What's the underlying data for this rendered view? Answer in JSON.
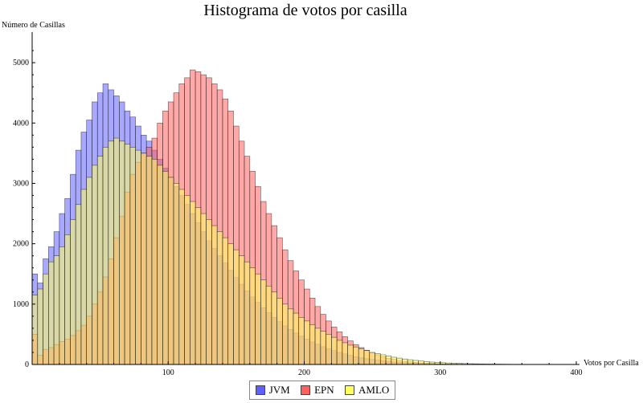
{
  "chart_data": {
    "type": "bar",
    "title": "Histograma de votos por casilla",
    "xlabel": "Votos por Casilla",
    "ylabel": "Número de Casillas",
    "xlim": [
      0,
      400
    ],
    "ylim": [
      0,
      5400
    ],
    "x_ticks": [
      100,
      200,
      300,
      400
    ],
    "y_ticks": [
      0,
      1000,
      2000,
      3000,
      4000,
      5000
    ],
    "bin_width": 4,
    "overlay": true,
    "legend_position": "bottom-center",
    "series": [
      {
        "name": "JVM",
        "color": "#6060ff",
        "values": [
          1500,
          1350,
          1750,
          1950,
          2200,
          2500,
          2750,
          3150,
          3550,
          3850,
          4050,
          4350,
          4500,
          4650,
          4550,
          4450,
          4350,
          4200,
          4100,
          3950,
          3800,
          3700,
          3550,
          3400,
          3250,
          3100,
          2950,
          2800,
          2650,
          2500,
          2350,
          2200,
          2050,
          1920,
          1800,
          1680,
          1560,
          1440,
          1330,
          1220,
          1120,
          1030,
          940,
          860,
          780,
          710,
          640,
          580,
          520,
          470,
          420,
          375,
          335,
          295,
          260,
          230,
          200,
          175,
          150,
          130,
          112,
          96,
          82,
          70,
          60,
          50,
          42,
          35,
          29,
          24,
          20,
          17,
          14,
          12,
          10,
          8,
          7,
          6,
          5,
          4,
          3,
          3,
          2,
          2,
          2,
          1,
          1,
          1,
          1,
          1,
          1,
          1,
          0,
          0,
          0,
          0,
          0,
          0,
          0,
          0
        ]
      },
      {
        "name": "EPN",
        "color": "#ff6060",
        "values": [
          500,
          150,
          250,
          280,
          330,
          380,
          420,
          480,
          560,
          650,
          800,
          1000,
          1200,
          1450,
          1750,
          2100,
          2450,
          2850,
          3150,
          3350,
          3500,
          3600,
          3750,
          4000,
          4200,
          4350,
          4500,
          4650,
          4750,
          4880,
          4850,
          4800,
          4750,
          4650,
          4550,
          4400,
          4200,
          3950,
          3700,
          3450,
          3200,
          2950,
          2700,
          2500,
          2300,
          2100,
          1900,
          1720,
          1550,
          1400,
          1250,
          1100,
          960,
          830,
          720,
          620,
          540,
          460,
          390,
          330,
          280,
          235,
          195,
          160,
          130,
          105,
          85,
          68,
          54,
          43,
          34,
          27,
          21,
          17,
          13,
          10,
          8,
          6,
          5,
          4,
          3,
          2,
          2,
          2,
          1,
          1,
          1,
          1,
          1,
          0,
          0,
          0,
          0,
          0,
          0,
          0,
          0,
          0,
          0,
          0
        ]
      },
      {
        "name": "AMLO",
        "color": "#ffff60",
        "values": [
          1150,
          1250,
          1500,
          1700,
          1800,
          1950,
          2150,
          2400,
          2650,
          2900,
          3100,
          3300,
          3450,
          3600,
          3700,
          3750,
          3700,
          3650,
          3600,
          3550,
          3500,
          3450,
          3400,
          3300,
          3200,
          3100,
          3000,
          2900,
          2800,
          2700,
          2600,
          2500,
          2400,
          2300,
          2200,
          2100,
          2000,
          1900,
          1800,
          1700,
          1600,
          1500,
          1400,
          1300,
          1200,
          1100,
          1000,
          920,
          850,
          780,
          720,
          660,
          600,
          550,
          500,
          450,
          400,
          360,
          320,
          290,
          260,
          230,
          200,
          180,
          160,
          140,
          120,
          105,
          90,
          78,
          67,
          57,
          48,
          40,
          34,
          29,
          25,
          21,
          18,
          15,
          13,
          11,
          9,
          8,
          7,
          6,
          5,
          4,
          3,
          3,
          2,
          2,
          2,
          1,
          1,
          1,
          1,
          1,
          0,
          0
        ]
      }
    ]
  }
}
